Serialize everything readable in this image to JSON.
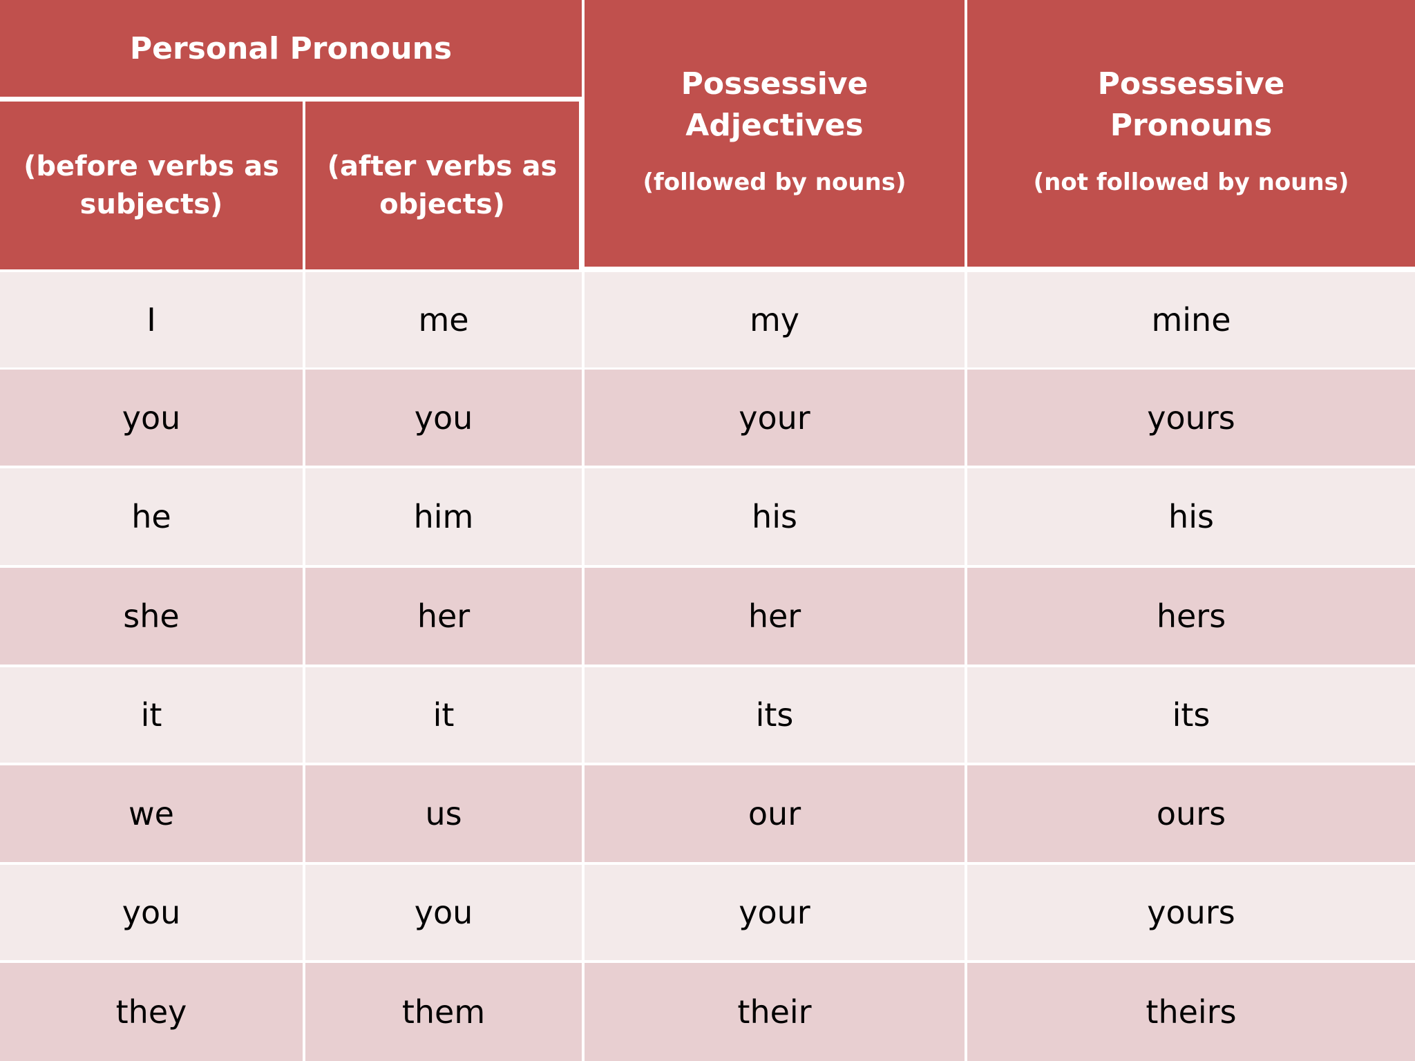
{
  "header": {
    "personal_pronouns": "Personal Pronouns",
    "subjects_line1": "(before verbs as",
    "subjects_line2": "subjects)",
    "objects_line1": "(after verbs as",
    "objects_line2": "objects)",
    "poss_adj_line1": "Possessive",
    "poss_adj_line2": "Adjectives",
    "poss_adj_note": "(followed by nouns)",
    "poss_pro_line1": "Possessive",
    "poss_pro_line2": "Pronouns",
    "poss_pro_note": "(not  followed by nouns)"
  },
  "rows": [
    [
      "I",
      "me",
      "my",
      "mine"
    ],
    [
      "you",
      "you",
      "your",
      "yours"
    ],
    [
      "he",
      "him",
      "his",
      "his"
    ],
    [
      "she",
      "her",
      "her",
      "hers"
    ],
    [
      "it",
      "it",
      "its",
      "its"
    ],
    [
      "we",
      "us",
      "our",
      "ours"
    ],
    [
      "you",
      "you",
      "your",
      "yours"
    ],
    [
      "they",
      "them",
      "their",
      "theirs"
    ]
  ],
  "colors": {
    "header": "#c0504d",
    "row_light": "#f3eaea",
    "row_dark": "#e8cfd1"
  }
}
